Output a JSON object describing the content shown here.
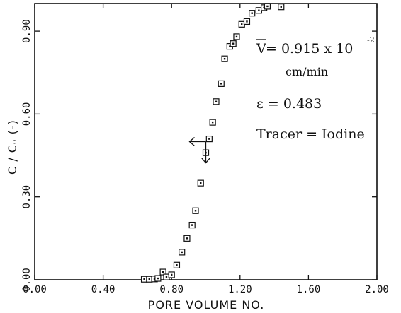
{
  "chart_data": {
    "type": "scatter",
    "xlabel": "PORE VOLUME NO.",
    "ylabel": "C / Cₒ (-)",
    "xlim": [
      0.0,
      2.0
    ],
    "ylim": [
      0.0,
      1.0
    ],
    "xticks": [
      "0.00",
      "0.40",
      "0.80",
      "1.20",
      "1.60",
      "2.00"
    ],
    "yticks": [
      "0.00",
      "0.30",
      "0.60",
      "0.90"
    ],
    "grid": false,
    "marker": "square",
    "points": [
      {
        "x": 0.64,
        "y": 0.002
      },
      {
        "x": 0.67,
        "y": 0.002
      },
      {
        "x": 0.7,
        "y": 0.003
      },
      {
        "x": 0.72,
        "y": 0.005
      },
      {
        "x": 0.75,
        "y": 0.028
      },
      {
        "x": 0.77,
        "y": 0.01
      },
      {
        "x": 0.8,
        "y": 0.018
      },
      {
        "x": 0.83,
        "y": 0.053
      },
      {
        "x": 0.86,
        "y": 0.1
      },
      {
        "x": 0.89,
        "y": 0.15
      },
      {
        "x": 0.92,
        "y": 0.198
      },
      {
        "x": 0.94,
        "y": 0.25
      },
      {
        "x": 0.97,
        "y": 0.35
      },
      {
        "x": 1.0,
        "y": 0.46
      },
      {
        "x": 1.02,
        "y": 0.51
      },
      {
        "x": 1.04,
        "y": 0.57
      },
      {
        "x": 1.06,
        "y": 0.645
      },
      {
        "x": 1.09,
        "y": 0.71
      },
      {
        "x": 1.11,
        "y": 0.8
      },
      {
        "x": 1.14,
        "y": 0.845
      },
      {
        "x": 1.16,
        "y": 0.855
      },
      {
        "x": 1.18,
        "y": 0.88
      },
      {
        "x": 1.21,
        "y": 0.925
      },
      {
        "x": 1.24,
        "y": 0.935
      },
      {
        "x": 1.27,
        "y": 0.965
      },
      {
        "x": 1.31,
        "y": 0.975
      },
      {
        "x": 1.34,
        "y": 0.985
      },
      {
        "x": 1.36,
        "y": 0.99
      },
      {
        "x": 1.44,
        "y": 0.988
      }
    ],
    "annotations": {
      "velocity_symbol": "V",
      "velocity_text": " = 0.915 x 10",
      "velocity_exponent": "-2",
      "velocity_units": "cm/min",
      "porosity_text": "ε = 0.483",
      "tracer_text": "Tracer = Iodine"
    },
    "marker_point": {
      "x": 1.0,
      "y": 0.5
    }
  }
}
